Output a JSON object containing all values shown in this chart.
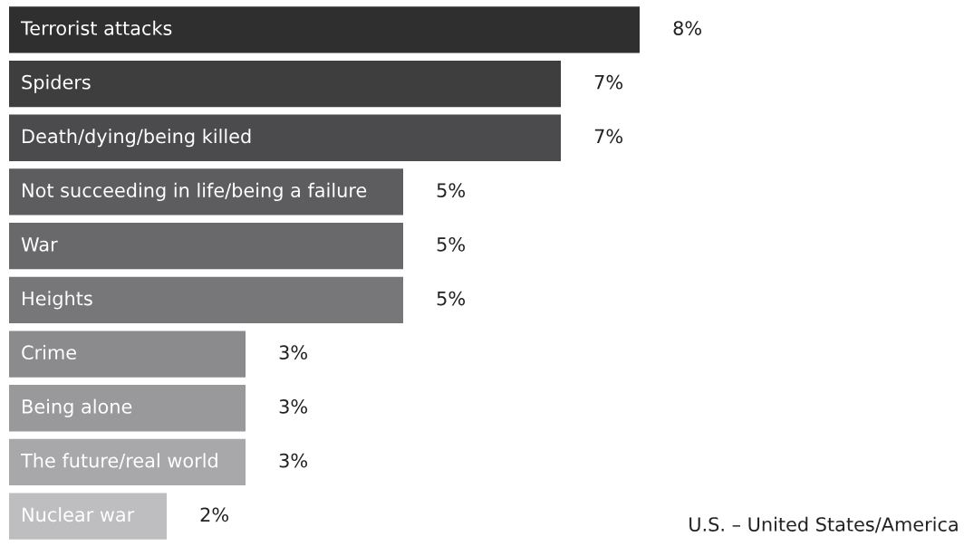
{
  "chart_data": {
    "type": "bar",
    "orientation": "horizontal",
    "categories": [
      "Terrorist attacks",
      "Spiders",
      "Death/dying/being killed",
      "Not succeeding in life/being a failure",
      "War",
      "Heights",
      "Crime",
      "Being alone",
      "The future/real world",
      "Nuclear war"
    ],
    "values": [
      8,
      7,
      7,
      5,
      5,
      5,
      3,
      3,
      3,
      2
    ],
    "value_labels": [
      "8%",
      "7%",
      "7%",
      "5%",
      "5%",
      "5%",
      "3%",
      "3%",
      "3%",
      "2%"
    ],
    "colors": [
      "#2f2f2f",
      "#3e3e3f",
      "#4b4b4d",
      "#5d5d5f",
      "#69696b",
      "#777779",
      "#8b8b8d",
      "#99999b",
      "#a8a8aa",
      "#bebec0"
    ],
    "annotations": [
      "U.S. – United States/America"
    ]
  }
}
